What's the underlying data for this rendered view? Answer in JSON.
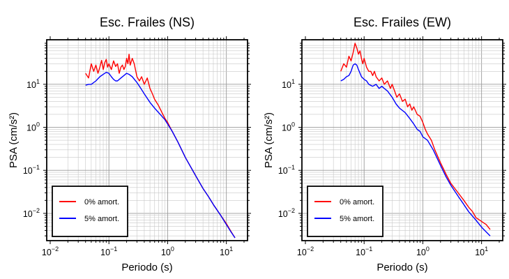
{
  "chart_data": [
    {
      "type": "line",
      "title": "Esc. Frailes (NS)",
      "xlabel": "Periodo (s)",
      "ylabel": "PSA (cm/s²)",
      "xscale": "log",
      "yscale": "log",
      "xlim": [
        0.01,
        20
      ],
      "ylim": [
        0.0028,
        90
      ],
      "grid": true,
      "legend_position": "bottom-left",
      "xticks": [
        {
          "base": "10",
          "exp": "−2"
        },
        {
          "base": "10",
          "exp": "−1"
        },
        {
          "base": "10",
          "exp": "0"
        },
        {
          "base": "10",
          "exp": "1"
        }
      ],
      "yticks": [
        {
          "base": "10",
          "exp": "−2"
        },
        {
          "base": "10",
          "exp": "−1"
        },
        {
          "base": "10",
          "exp": "0"
        },
        {
          "base": "10",
          "exp": "1"
        }
      ],
      "series": [
        {
          "name": "0% amort.",
          "color": "#ff0000",
          "x": [
            0.04,
            0.045,
            0.05,
            0.055,
            0.06,
            0.065,
            0.07,
            0.075,
            0.08,
            0.085,
            0.09,
            0.095,
            0.1,
            0.11,
            0.12,
            0.13,
            0.14,
            0.15,
            0.16,
            0.17,
            0.18,
            0.19,
            0.2,
            0.21,
            0.22,
            0.23,
            0.25,
            0.27,
            0.3,
            0.33,
            0.36,
            0.4,
            0.45,
            0.5,
            0.55,
            0.6,
            0.7,
            0.8,
            0.9,
            1.0,
            1.1,
            1.2,
            1.5,
            2,
            3,
            4,
            5,
            6,
            8,
            10,
            12,
            14
          ],
          "y": [
            18,
            14,
            30,
            20,
            28,
            18,
            25,
            36,
            22,
            32,
            38,
            25,
            30,
            22,
            35,
            26,
            30,
            18,
            25,
            28,
            22,
            26,
            40,
            30,
            50,
            28,
            40,
            30,
            15,
            12,
            15,
            10,
            14,
            8,
            6,
            4.5,
            3.2,
            2.2,
            1.6,
            1.3,
            1.0,
            0.8,
            0.45,
            0.2,
            0.075,
            0.038,
            0.024,
            0.016,
            0.009,
            0.0058,
            0.0038,
            0.0027
          ]
        },
        {
          "name": "5% amort.",
          "color": "#0000ff",
          "x": [
            0.04,
            0.045,
            0.05,
            0.06,
            0.07,
            0.08,
            0.09,
            0.1,
            0.11,
            0.12,
            0.13,
            0.14,
            0.16,
            0.18,
            0.2,
            0.22,
            0.25,
            0.3,
            0.35,
            0.4,
            0.5,
            0.6,
            0.7,
            0.8,
            0.9,
            1.0,
            1.2,
            1.5,
            2,
            3,
            4,
            5,
            6,
            8,
            10,
            12,
            14
          ],
          "y": [
            9.5,
            10,
            10,
            12,
            15,
            17,
            19,
            18,
            15,
            13,
            12,
            12,
            14,
            16,
            18,
            17,
            15,
            11,
            8,
            6,
            3.8,
            2.8,
            2.2,
            1.8,
            1.5,
            1.2,
            0.8,
            0.45,
            0.2,
            0.075,
            0.038,
            0.024,
            0.016,
            0.009,
            0.0055,
            0.0037,
            0.0027
          ]
        }
      ]
    },
    {
      "type": "line",
      "title": "Esc. Frailes (EW)",
      "xlabel": "Periodo (s)",
      "ylabel": "PSA (cm/s²)",
      "xscale": "log",
      "yscale": "log",
      "xlim": [
        0.01,
        20
      ],
      "ylim": [
        0.0028,
        90
      ],
      "grid": true,
      "legend_position": "bottom-left",
      "xticks": [
        {
          "base": "10",
          "exp": "−2"
        },
        {
          "base": "10",
          "exp": "−1"
        },
        {
          "base": "10",
          "exp": "0"
        },
        {
          "base": "10",
          "exp": "1"
        }
      ],
      "yticks": [
        {
          "base": "10",
          "exp": "−2"
        },
        {
          "base": "10",
          "exp": "−1"
        },
        {
          "base": "10",
          "exp": "0"
        },
        {
          "base": "10",
          "exp": "1"
        }
      ],
      "series": [
        {
          "name": "0% amort.",
          "color": "#ff0000",
          "x": [
            0.04,
            0.045,
            0.05,
            0.055,
            0.06,
            0.065,
            0.07,
            0.075,
            0.08,
            0.085,
            0.09,
            0.095,
            0.1,
            0.11,
            0.12,
            0.13,
            0.14,
            0.15,
            0.16,
            0.18,
            0.2,
            0.22,
            0.25,
            0.28,
            0.3,
            0.33,
            0.36,
            0.4,
            0.45,
            0.5,
            0.55,
            0.6,
            0.65,
            0.7,
            0.8,
            0.9,
            1.0,
            1.1,
            1.2,
            1.4,
            1.6,
            2,
            2.5,
            3,
            4,
            5,
            6,
            7,
            8,
            10,
            12,
            14
          ],
          "y": [
            20,
            30,
            25,
            45,
            35,
            55,
            90,
            70,
            50,
            60,
            40,
            30,
            40,
            25,
            20,
            20,
            16,
            20,
            15,
            12,
            14,
            10,
            12,
            8,
            10,
            7,
            5,
            6,
            4,
            4.5,
            3,
            3.5,
            2.5,
            3,
            2,
            1.8,
            1.3,
            0.9,
            0.7,
            0.5,
            0.3,
            0.15,
            0.08,
            0.05,
            0.03,
            0.02,
            0.014,
            0.011,
            0.008,
            0.0065,
            0.0055,
            0.0042
          ]
        },
        {
          "name": "5% amort.",
          "color": "#0000ff",
          "x": [
            0.04,
            0.045,
            0.05,
            0.055,
            0.06,
            0.065,
            0.07,
            0.075,
            0.08,
            0.09,
            0.1,
            0.11,
            0.12,
            0.14,
            0.16,
            0.18,
            0.2,
            0.22,
            0.25,
            0.3,
            0.35,
            0.4,
            0.5,
            0.6,
            0.7,
            0.8,
            0.9,
            1.0,
            1.2,
            1.5,
            2,
            2.5,
            3,
            4,
            5,
            6,
            8,
            10,
            12,
            14
          ],
          "y": [
            12,
            13,
            15,
            16,
            20,
            28,
            30,
            28,
            22,
            15,
            13,
            12,
            10,
            9,
            10,
            8,
            9,
            8,
            7,
            5,
            3.5,
            2.8,
            2.2,
            1.6,
            1.2,
            0.9,
            0.8,
            0.6,
            0.5,
            0.3,
            0.13,
            0.07,
            0.045,
            0.025,
            0.016,
            0.011,
            0.007,
            0.0048,
            0.0037,
            0.003
          ]
        }
      ]
    }
  ]
}
